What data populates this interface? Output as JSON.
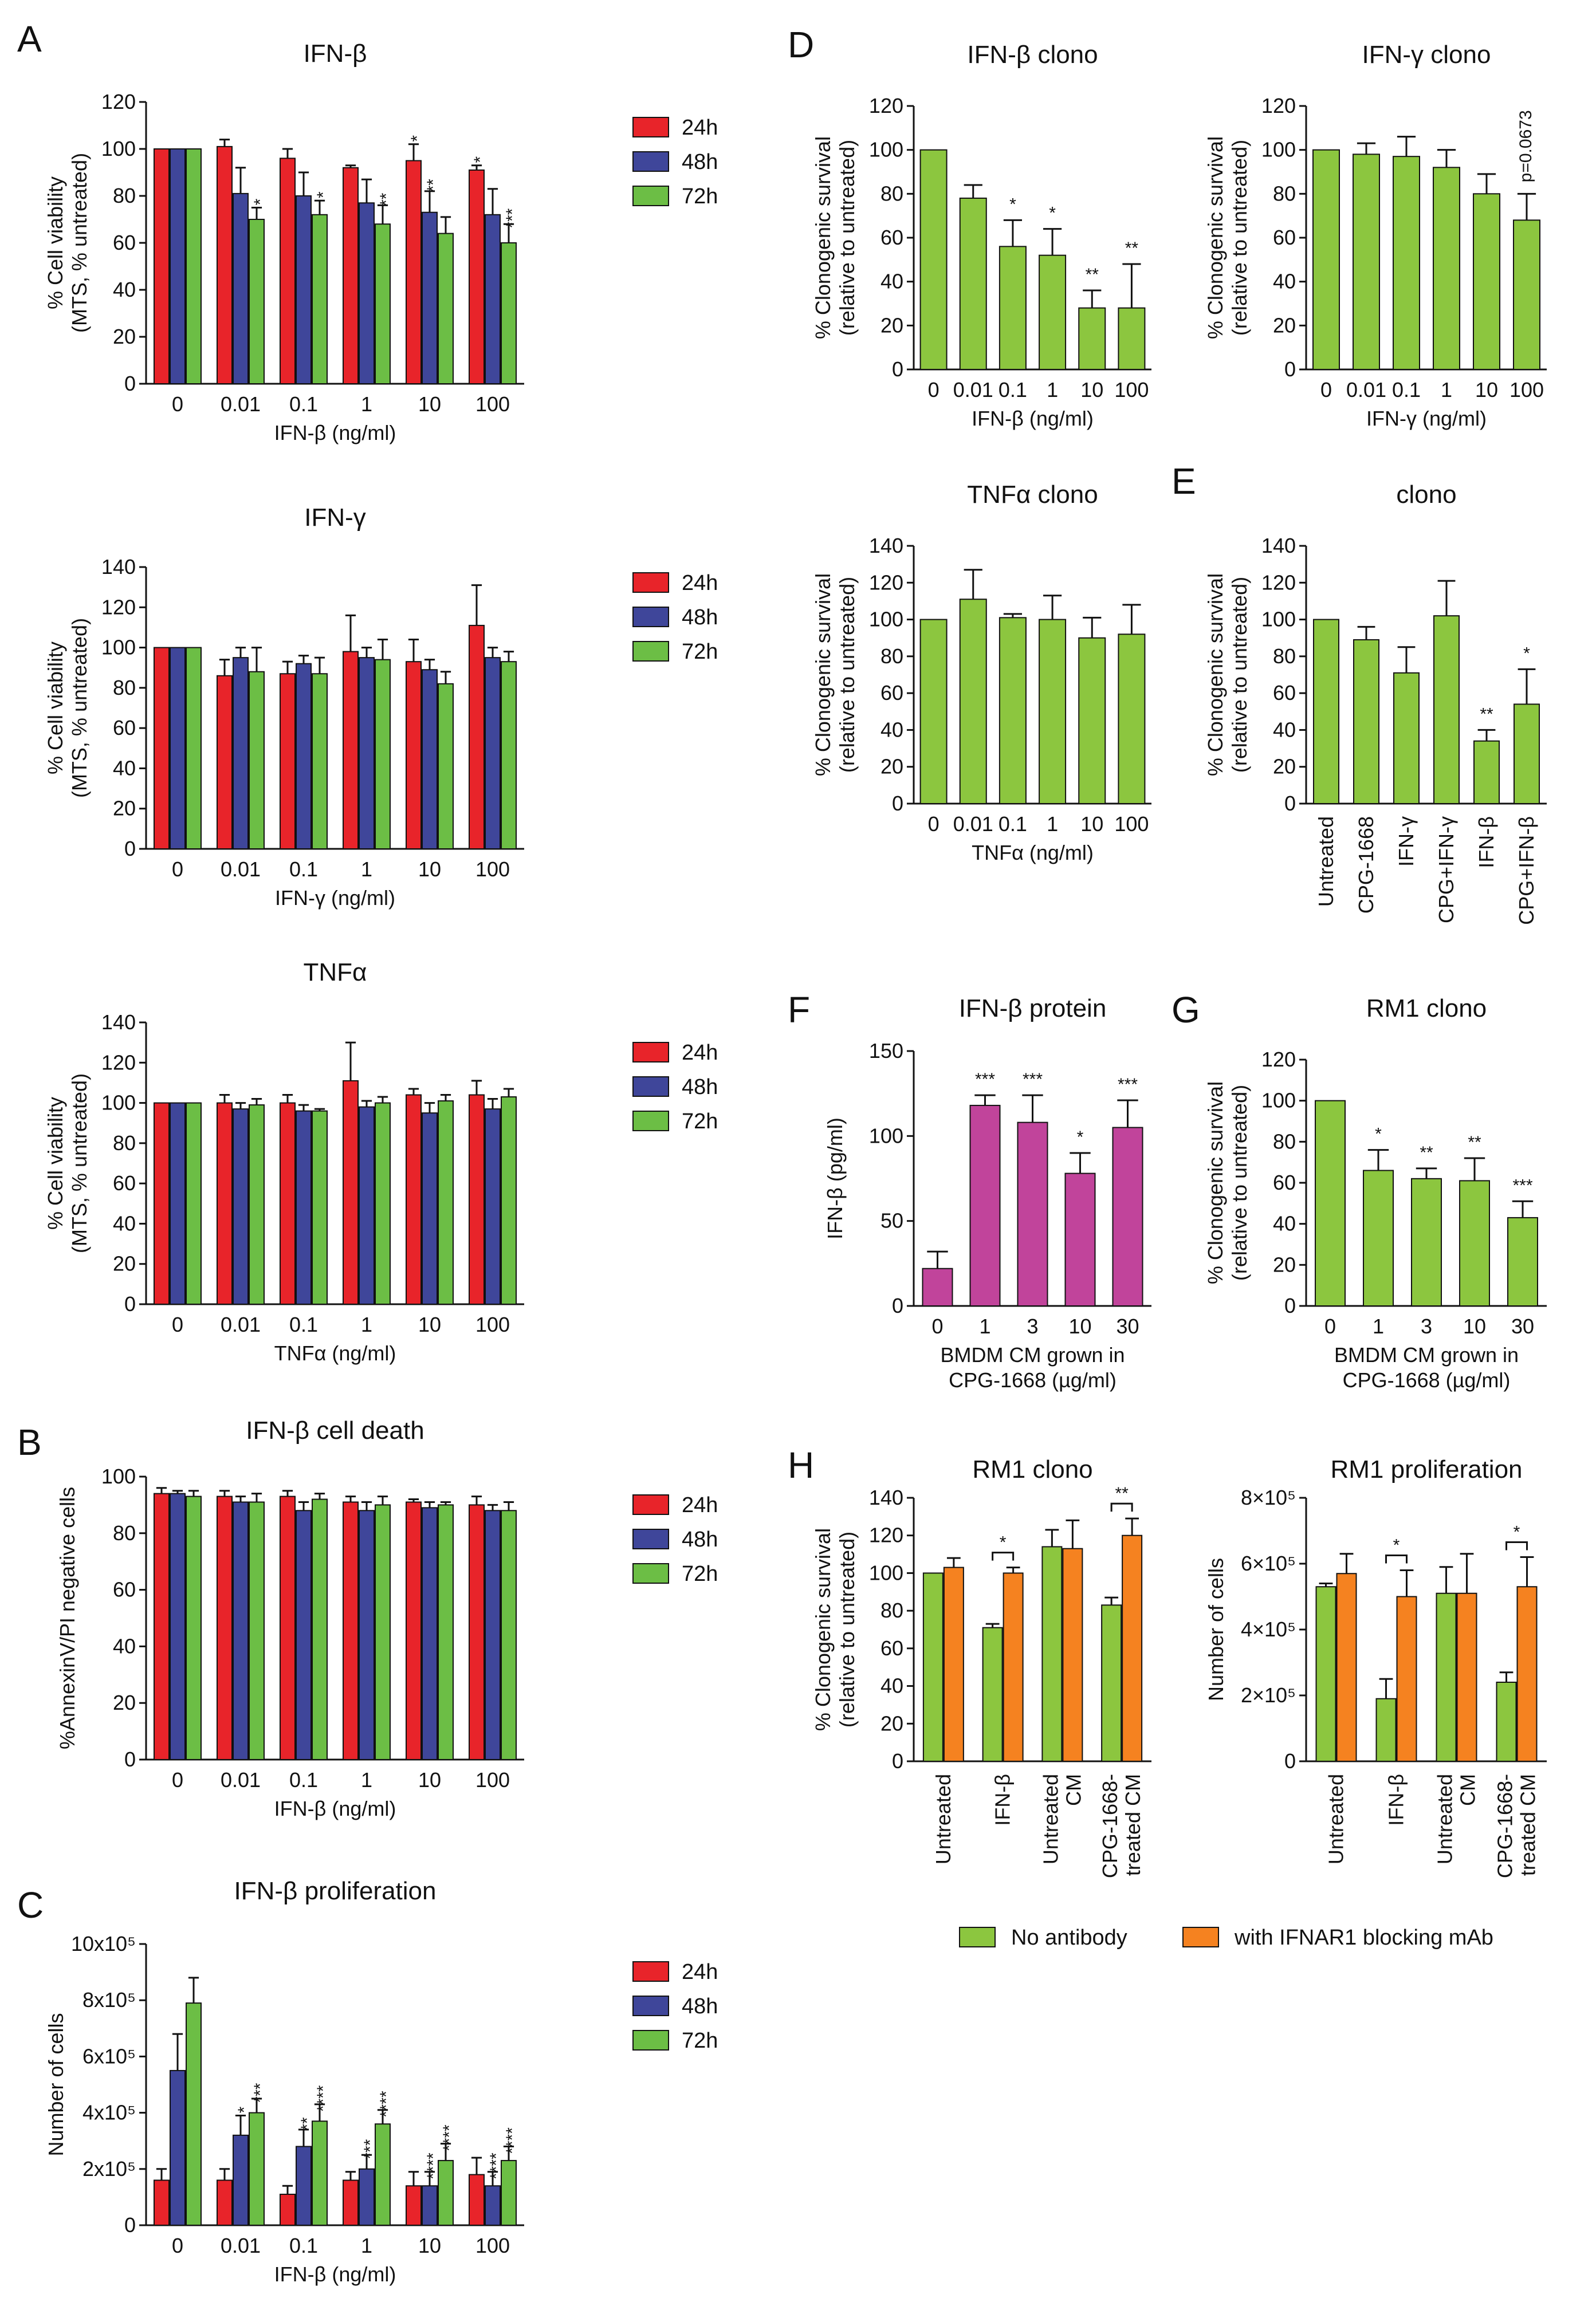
{
  "colors": {
    "h24": "#e8242a",
    "h48": "#3f469a",
    "h72": "#6cbe45",
    "green": "#8cc63f",
    "magenta": "#c1449b",
    "orange": "#f58220",
    "axis": "#111111"
  },
  "legend_time": [
    "24h",
    "48h",
    "72h"
  ],
  "legend_H": [
    "No antibody",
    "with IFNAR1 blocking mAb"
  ],
  "chart_data": [
    {
      "id": "A1",
      "panel_label": "A",
      "type": "bar",
      "title": "IFN-β",
      "xlabel": "IFN-β (ng/ml)",
      "ylabel": [
        "% Cell viability",
        "(MTS, % untreated)"
      ],
      "ylim": [
        0,
        120
      ],
      "yticks": [
        0,
        20,
        40,
        60,
        80,
        100,
        120
      ],
      "categories": [
        "0",
        "0.01",
        "0.1",
        "1",
        "10",
        "100"
      ],
      "legend": true,
      "series": [
        {
          "name": "24h",
          "color": "h24",
          "values": [
            100,
            101,
            96,
            92,
            95,
            91
          ],
          "errors": [
            0,
            3,
            4,
            1,
            7,
            2
          ],
          "stars": [
            "",
            "",
            "",
            "",
            "*",
            "*"
          ]
        },
        {
          "name": "48h",
          "color": "h48",
          "values": [
            100,
            81,
            80,
            77,
            73,
            72
          ],
          "errors": [
            0,
            11,
            10,
            10,
            9,
            11
          ],
          "stars": [
            "",
            "",
            "",
            "",
            "**",
            ""
          ]
        },
        {
          "name": "72h",
          "color": "h72",
          "values": [
            100,
            70,
            72,
            68,
            64,
            60
          ],
          "errors": [
            0,
            5,
            6,
            8,
            7,
            8
          ],
          "stars": [
            "",
            "*",
            "*",
            "**",
            "",
            "***"
          ]
        }
      ]
    },
    {
      "id": "A2",
      "panel_label": "",
      "type": "bar",
      "title": "IFN-γ",
      "xlabel": "IFN-γ (ng/ml)",
      "ylabel": [
        "% Cell viability",
        "(MTS, % untreated)"
      ],
      "ylim": [
        0,
        140
      ],
      "yticks": [
        0,
        20,
        40,
        60,
        80,
        100,
        120,
        140
      ],
      "categories": [
        "0",
        "0.01",
        "0.1",
        "1",
        "10",
        "100"
      ],
      "legend": true,
      "series": [
        {
          "name": "24h",
          "color": "h24",
          "values": [
            100,
            86,
            87,
            98,
            93,
            111
          ],
          "errors": [
            0,
            8,
            6,
            18,
            11,
            20
          ],
          "stars": [
            "",
            "",
            "",
            "",
            "",
            ""
          ]
        },
        {
          "name": "48h",
          "color": "h48",
          "values": [
            100,
            95,
            92,
            95,
            89,
            95
          ],
          "errors": [
            0,
            5,
            4,
            5,
            5,
            5
          ],
          "stars": [
            "",
            "",
            "",
            "",
            "",
            ""
          ]
        },
        {
          "name": "72h",
          "color": "h72",
          "values": [
            100,
            88,
            87,
            94,
            82,
            93
          ],
          "errors": [
            0,
            12,
            8,
            10,
            6,
            5
          ],
          "stars": [
            "",
            "",
            "",
            "",
            "",
            ""
          ]
        }
      ]
    },
    {
      "id": "A3",
      "panel_label": "",
      "type": "bar",
      "title": "TNFα",
      "xlabel": "TNFα (ng/ml)",
      "ylabel": [
        "% Cell viability",
        "(MTS, % untreated)"
      ],
      "ylim": [
        0,
        140
      ],
      "yticks": [
        0,
        20,
        40,
        60,
        80,
        100,
        120,
        140
      ],
      "categories": [
        "0",
        "0.01",
        "0.1",
        "1",
        "10",
        "100"
      ],
      "legend": true,
      "series": [
        {
          "name": "24h",
          "color": "h24",
          "values": [
            100,
            100,
            100,
            111,
            104,
            104
          ],
          "errors": [
            0,
            4,
            4,
            19,
            3,
            7
          ],
          "stars": [
            "",
            "",
            "",
            "",
            "",
            ""
          ]
        },
        {
          "name": "48h",
          "color": "h48",
          "values": [
            100,
            97,
            96,
            98,
            95,
            97
          ],
          "errors": [
            0,
            3,
            3,
            3,
            5,
            5
          ],
          "stars": [
            "",
            "",
            "",
            "",
            "",
            ""
          ]
        },
        {
          "name": "72h",
          "color": "h72",
          "values": [
            100,
            99,
            96,
            100,
            101,
            103
          ],
          "errors": [
            0,
            3,
            1,
            3,
            3,
            4
          ],
          "stars": [
            "",
            "",
            "",
            "",
            "",
            ""
          ]
        }
      ]
    },
    {
      "id": "B",
      "panel_label": "B",
      "type": "bar",
      "title": "IFN-β cell death",
      "xlabel": "IFN-β (ng/ml)",
      "ylabel": [
        "%AnnexinV/PI negative cells"
      ],
      "ylim": [
        0,
        100
      ],
      "yticks": [
        0,
        20,
        40,
        60,
        80,
        100
      ],
      "categories": [
        "0",
        "0.01",
        "0.1",
        "1",
        "10",
        "100"
      ],
      "legend": true,
      "series": [
        {
          "name": "24h",
          "color": "h24",
          "values": [
            94,
            93,
            93,
            91,
            91,
            90
          ],
          "errors": [
            2,
            2,
            2,
            2,
            1,
            3
          ],
          "stars": [
            "",
            "",
            "",
            "",
            "",
            ""
          ]
        },
        {
          "name": "48h",
          "color": "h48",
          "values": [
            94,
            91,
            88,
            88,
            89,
            88
          ],
          "errors": [
            1,
            2,
            3,
            3,
            2,
            2
          ],
          "stars": [
            "",
            "",
            "",
            "",
            "",
            ""
          ]
        },
        {
          "name": "72h",
          "color": "h72",
          "values": [
            93,
            91,
            92,
            90,
            90,
            88
          ],
          "errors": [
            2,
            3,
            2,
            3,
            1,
            3
          ],
          "stars": [
            "",
            "",
            "",
            "",
            "",
            ""
          ]
        }
      ]
    },
    {
      "id": "C",
      "panel_label": "C",
      "type": "bar",
      "title": "IFN-β proliferation",
      "xlabel": "IFN-β (ng/ml)",
      "ylabel": [
        "Number of  cells"
      ],
      "ylim": [
        0,
        10
      ],
      "yticks": [
        0,
        2,
        4,
        6,
        8,
        10
      ],
      "ytick_labels": [
        "0",
        "2x10⁵",
        "4x10⁵",
        "6x10⁵",
        "8x10⁵",
        "10x10⁵"
      ],
      "categories": [
        "0",
        "0.01",
        "0.1",
        "1",
        "10",
        "100"
      ],
      "legend": true,
      "series": [
        {
          "name": "24h",
          "color": "h24",
          "values": [
            1.6,
            1.6,
            1.1,
            1.6,
            1.4,
            1.8
          ],
          "errors": [
            0.4,
            0.4,
            0.3,
            0.3,
            0.5,
            0.6
          ],
          "stars": [
            "",
            "",
            "",
            "",
            "",
            ""
          ]
        },
        {
          "name": "48h",
          "color": "h48",
          "values": [
            5.5,
            3.2,
            2.8,
            2.0,
            1.4,
            1.4
          ],
          "errors": [
            1.3,
            0.7,
            0.6,
            0.5,
            0.5,
            0.5
          ],
          "stars": [
            "",
            "*",
            "**",
            "***",
            "****",
            "****"
          ]
        },
        {
          "name": "72h",
          "color": "h72",
          "values": [
            7.9,
            4.0,
            3.7,
            3.6,
            2.3,
            2.3
          ],
          "errors": [
            0.9,
            0.5,
            0.6,
            0.5,
            0.6,
            0.5
          ],
          "stars": [
            "",
            "***",
            "****",
            "****",
            "****",
            "****"
          ]
        }
      ]
    },
    {
      "id": "D1",
      "panel_label": "D",
      "type": "bar",
      "title": "IFN-β clono",
      "xlabel": "IFN-β (ng/ml)",
      "ylabel": [
        "% Clonogenic survival",
        "(relative to untreated)"
      ],
      "ylim": [
        0,
        120
      ],
      "yticks": [
        0,
        20,
        40,
        60,
        80,
        100,
        120
      ],
      "categories": [
        "0",
        "0.01",
        "0.1",
        "1",
        "10",
        "100"
      ],
      "series": [
        {
          "name": "",
          "color": "green",
          "values": [
            100,
            78,
            56,
            52,
            28,
            28
          ],
          "errors": [
            0,
            6,
            12,
            12,
            8,
            20
          ],
          "stars": [
            "",
            "",
            "*",
            "*",
            "**",
            "**"
          ]
        }
      ]
    },
    {
      "id": "D2",
      "panel_label": "",
      "type": "bar",
      "title": "IFN-γ clono",
      "xlabel": "IFN-γ (ng/ml)",
      "ylabel": [
        "% Clonogenic survival",
        "(relative to untreated)"
      ],
      "ylim": [
        0,
        120
      ],
      "yticks": [
        0,
        20,
        40,
        60,
        80,
        100,
        120
      ],
      "categories": [
        "0",
        "0.01",
        "0.1",
        "1",
        "10",
        "100"
      ],
      "annotation": "p=0.0673",
      "series": [
        {
          "name": "",
          "color": "green",
          "values": [
            100,
            98,
            97,
            92,
            80,
            68
          ],
          "errors": [
            0,
            5,
            9,
            8,
            9,
            12
          ],
          "stars": [
            "",
            "",
            "",
            "",
            "",
            ""
          ]
        }
      ]
    },
    {
      "id": "D3",
      "panel_label": "",
      "type": "bar",
      "title": "TNFα clono",
      "xlabel": "TNFα (ng/ml)",
      "ylabel": [
        "% Clonogenic survival",
        "(relative to untreated)"
      ],
      "ylim": [
        0,
        140
      ],
      "yticks": [
        0,
        20,
        40,
        60,
        80,
        100,
        120,
        140
      ],
      "categories": [
        "0",
        "0.01",
        "0.1",
        "1",
        "10",
        "100"
      ],
      "series": [
        {
          "name": "",
          "color": "green",
          "values": [
            100,
            111,
            101,
            100,
            90,
            92
          ],
          "errors": [
            0,
            16,
            2,
            13,
            11,
            16
          ],
          "stars": [
            "",
            "",
            "",
            "",
            "",
            ""
          ]
        }
      ]
    },
    {
      "id": "E",
      "panel_label": "E",
      "type": "bar",
      "title": "clono",
      "xlabel": "",
      "ylabel": [
        "% Clonogenic survival",
        "(relative to untreated)"
      ],
      "ylim": [
        0,
        140
      ],
      "yticks": [
        0,
        20,
        40,
        60,
        80,
        100,
        120,
        140
      ],
      "categories": [
        "Untreated",
        "CPG-1668",
        "IFN-γ",
        "CPG+IFN-γ",
        "IFN-β",
        "CPG+IFN-β"
      ],
      "rotate_labels": true,
      "series": [
        {
          "name": "",
          "color": "green",
          "values": [
            100,
            89,
            71,
            102,
            34,
            54
          ],
          "errors": [
            0,
            7,
            14,
            19,
            6,
            19
          ],
          "stars": [
            "",
            "",
            "",
            "",
            "**",
            "*"
          ]
        }
      ]
    },
    {
      "id": "F",
      "panel_label": "F",
      "type": "bar",
      "title": "IFN-β protein",
      "xlabel": "BMDM CM grown in",
      "xlabel2": "CPG-1668 (µg/ml)",
      "ylabel": [
        "IFN-β (pg/ml)"
      ],
      "ylim": [
        0,
        150
      ],
      "yticks": [
        0,
        50,
        100,
        150
      ],
      "categories": [
        "0",
        "1",
        "3",
        "10",
        "30"
      ],
      "series": [
        {
          "name": "",
          "color": "magenta",
          "values": [
            22,
            118,
            108,
            78,
            105
          ],
          "errors": [
            10,
            6,
            16,
            12,
            16
          ],
          "stars": [
            "",
            "***",
            "***",
            "*",
            "***"
          ]
        }
      ]
    },
    {
      "id": "G",
      "panel_label": "G",
      "type": "bar",
      "title": "RM1 clono",
      "xlabel": "BMDM CM grown in",
      "xlabel2": "CPG-1668 (µg/ml)",
      "ylabel": [
        "% Clonogenic survival",
        "(relative to untreated)"
      ],
      "ylim": [
        0,
        120
      ],
      "yticks": [
        0,
        20,
        40,
        60,
        80,
        100,
        120
      ],
      "categories": [
        "0",
        "1",
        "3",
        "10",
        "30"
      ],
      "series": [
        {
          "name": "",
          "color": "green",
          "values": [
            100,
            66,
            62,
            61,
            43
          ],
          "errors": [
            0,
            10,
            5,
            11,
            8
          ],
          "stars": [
            "",
            "*",
            "**",
            "**",
            "***"
          ]
        }
      ]
    },
    {
      "id": "H1",
      "panel_label": "H",
      "type": "bar",
      "title": "RM1 clono",
      "xlabel": "",
      "ylabel": [
        "% Clonogenic survival",
        "(relative to untreated)"
      ],
      "ylim": [
        0,
        140
      ],
      "yticks": [
        0,
        20,
        40,
        60,
        80,
        100,
        120,
        140
      ],
      "categories": [
        "Untreated",
        "IFN-β",
        "Untreated CM",
        "CPG-1668-treated CM"
      ],
      "category_lines": [
        [
          "Untreated"
        ],
        [
          "IFN-β"
        ],
        [
          "Untreated",
          "CM"
        ],
        [
          "CPG-1668-",
          "treated CM"
        ]
      ],
      "rotate_labels": true,
      "brackets": [
        {
          "index": 1,
          "label": "*"
        },
        {
          "index": 3,
          "label": "**"
        }
      ],
      "series": [
        {
          "name": "No antibody",
          "color": "green",
          "values": [
            100,
            71,
            114,
            83
          ],
          "errors": [
            0,
            2,
            9,
            4
          ],
          "stars": [
            "",
            "",
            "",
            ""
          ]
        },
        {
          "name": "with IFNAR1 blocking mAb",
          "color": "orange",
          "values": [
            103,
            100,
            113,
            120
          ],
          "errors": [
            5,
            3,
            15,
            9
          ],
          "stars": [
            "",
            "",
            "",
            ""
          ]
        }
      ]
    },
    {
      "id": "H2",
      "panel_label": "",
      "type": "bar",
      "title": "RM1 proliferation",
      "xlabel": "",
      "ylabel": [
        "Number of  cells"
      ],
      "ylim": [
        0,
        8
      ],
      "yticks": [
        0,
        2,
        4,
        6,
        8
      ],
      "ytick_labels": [
        "0",
        "2×10⁵",
        "4×10⁵",
        "6×10⁵",
        "8×10⁵"
      ],
      "categories": [
        "Untreated",
        "IFN-β",
        "Untreated CM",
        "CPG-1668-treated CM"
      ],
      "category_lines": [
        [
          "Untreated"
        ],
        [
          "IFN-β"
        ],
        [
          "Untreated",
          "CM"
        ],
        [
          "CPG-1668-",
          "treated CM"
        ]
      ],
      "rotate_labels": true,
      "brackets": [
        {
          "index": 1,
          "label": "*"
        },
        {
          "index": 3,
          "label": "*"
        }
      ],
      "series": [
        {
          "name": "No antibody",
          "color": "green",
          "values": [
            5.3,
            1.9,
            5.1,
            2.4
          ],
          "errors": [
            0.1,
            0.6,
            0.8,
            0.3
          ],
          "stars": [
            "",
            "",
            "",
            ""
          ]
        },
        {
          "name": "with IFNAR1 blocking mAb",
          "color": "orange",
          "values": [
            5.7,
            5.0,
            5.1,
            5.3
          ],
          "errors": [
            0.6,
            0.8,
            1.2,
            0.9
          ],
          "stars": [
            "",
            "",
            "",
            ""
          ]
        }
      ]
    }
  ]
}
